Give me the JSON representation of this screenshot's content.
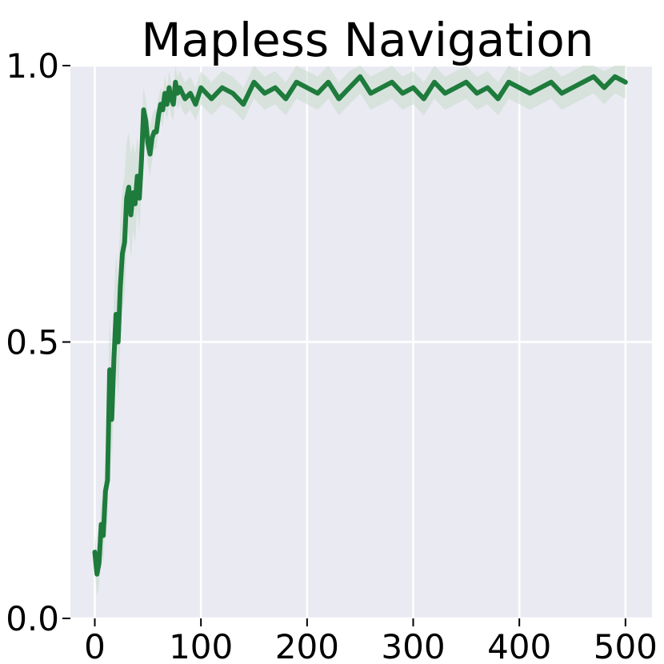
{
  "chart_data": {
    "type": "line",
    "title": "Mapless Navigation",
    "xlabel": "",
    "ylabel": "",
    "xlim": [
      -23,
      525
    ],
    "ylim": [
      0.0,
      1.0
    ],
    "x_ticks": [
      0,
      100,
      200,
      300,
      400,
      500
    ],
    "x_tick_labels": [
      "0",
      "100",
      "200",
      "300",
      "400",
      "500"
    ],
    "y_ticks": [
      0.0,
      0.5,
      1.0
    ],
    "y_tick_labels": [
      "0.0",
      "0.5",
      "1.0"
    ],
    "grid": true,
    "legend": "none",
    "colors": {
      "background": "#eaeaf2",
      "grid": "#ffffff",
      "line": "#1e7b3c",
      "band": "#c9dccf"
    },
    "series": [
      {
        "x": [
          0,
          2,
          4,
          6,
          8,
          10,
          12,
          14,
          16,
          18,
          20,
          22,
          24,
          26,
          28,
          30,
          32,
          34,
          36,
          38,
          40,
          42,
          44,
          46,
          48,
          50,
          52,
          54,
          56,
          58,
          60,
          62,
          64,
          66,
          68,
          70,
          72,
          74,
          76,
          78,
          80,
          85,
          90,
          95,
          100,
          110,
          120,
          130,
          140,
          150,
          160,
          170,
          180,
          190,
          200,
          210,
          220,
          230,
          240,
          250,
          260,
          270,
          280,
          290,
          300,
          310,
          320,
          330,
          340,
          350,
          360,
          370,
          380,
          390,
          400,
          410,
          420,
          430,
          440,
          450,
          460,
          470,
          480,
          490,
          500
        ],
        "values": [
          0.12,
          0.08,
          0.1,
          0.17,
          0.15,
          0.23,
          0.25,
          0.45,
          0.36,
          0.47,
          0.55,
          0.5,
          0.6,
          0.66,
          0.68,
          0.76,
          0.78,
          0.73,
          0.77,
          0.75,
          0.8,
          0.76,
          0.83,
          0.92,
          0.9,
          0.86,
          0.84,
          0.87,
          0.88,
          0.88,
          0.91,
          0.93,
          0.92,
          0.95,
          0.93,
          0.96,
          0.94,
          0.93,
          0.97,
          0.95,
          0.96,
          0.94,
          0.95,
          0.93,
          0.96,
          0.94,
          0.96,
          0.95,
          0.93,
          0.97,
          0.95,
          0.96,
          0.94,
          0.97,
          0.96,
          0.95,
          0.97,
          0.94,
          0.96,
          0.98,
          0.95,
          0.96,
          0.97,
          0.95,
          0.96,
          0.94,
          0.97,
          0.95,
          0.96,
          0.97,
          0.95,
          0.96,
          0.94,
          0.97,
          0.96,
          0.95,
          0.96,
          0.97,
          0.95,
          0.96,
          0.97,
          0.98,
          0.96,
          0.98,
          0.97
        ],
        "lower": [
          0.09,
          0.04,
          0.06,
          0.12,
          0.1,
          0.17,
          0.17,
          0.35,
          0.28,
          0.38,
          0.45,
          0.4,
          0.5,
          0.56,
          0.58,
          0.67,
          0.7,
          0.65,
          0.7,
          0.68,
          0.74,
          0.7,
          0.78,
          0.88,
          0.86,
          0.82,
          0.8,
          0.83,
          0.85,
          0.85,
          0.88,
          0.9,
          0.89,
          0.92,
          0.9,
          0.93,
          0.91,
          0.9,
          0.94,
          0.92,
          0.93,
          0.91,
          0.92,
          0.9,
          0.93,
          0.91,
          0.93,
          0.92,
          0.9,
          0.94,
          0.92,
          0.93,
          0.91,
          0.94,
          0.93,
          0.92,
          0.94,
          0.91,
          0.93,
          0.95,
          0.92,
          0.93,
          0.94,
          0.92,
          0.93,
          0.91,
          0.94,
          0.92,
          0.93,
          0.94,
          0.92,
          0.93,
          0.91,
          0.94,
          0.93,
          0.92,
          0.93,
          0.94,
          0.92,
          0.93,
          0.94,
          0.95,
          0.93,
          0.95,
          0.94
        ],
        "upper": [
          0.15,
          0.12,
          0.14,
          0.22,
          0.2,
          0.3,
          0.34,
          0.55,
          0.46,
          0.58,
          0.66,
          0.62,
          0.72,
          0.78,
          0.8,
          0.86,
          0.88,
          0.84,
          0.86,
          0.84,
          0.87,
          0.84,
          0.89,
          0.96,
          0.94,
          0.91,
          0.89,
          0.91,
          0.92,
          0.92,
          0.94,
          0.96,
          0.95,
          0.98,
          0.96,
          0.99,
          0.97,
          0.96,
          1.0,
          0.98,
          0.99,
          0.97,
          0.98,
          0.96,
          0.99,
          0.97,
          0.99,
          0.98,
          0.96,
          1.0,
          0.98,
          0.99,
          0.97,
          1.0,
          0.99,
          0.98,
          1.0,
          0.97,
          0.99,
          1.0,
          0.98,
          0.99,
          1.0,
          0.98,
          0.99,
          0.97,
          1.0,
          0.98,
          0.99,
          1.0,
          0.98,
          0.99,
          0.97,
          1.0,
          0.99,
          0.98,
          0.99,
          1.0,
          0.98,
          0.99,
          1.0,
          1.0,
          0.99,
          1.0,
          1.0
        ]
      }
    ]
  }
}
